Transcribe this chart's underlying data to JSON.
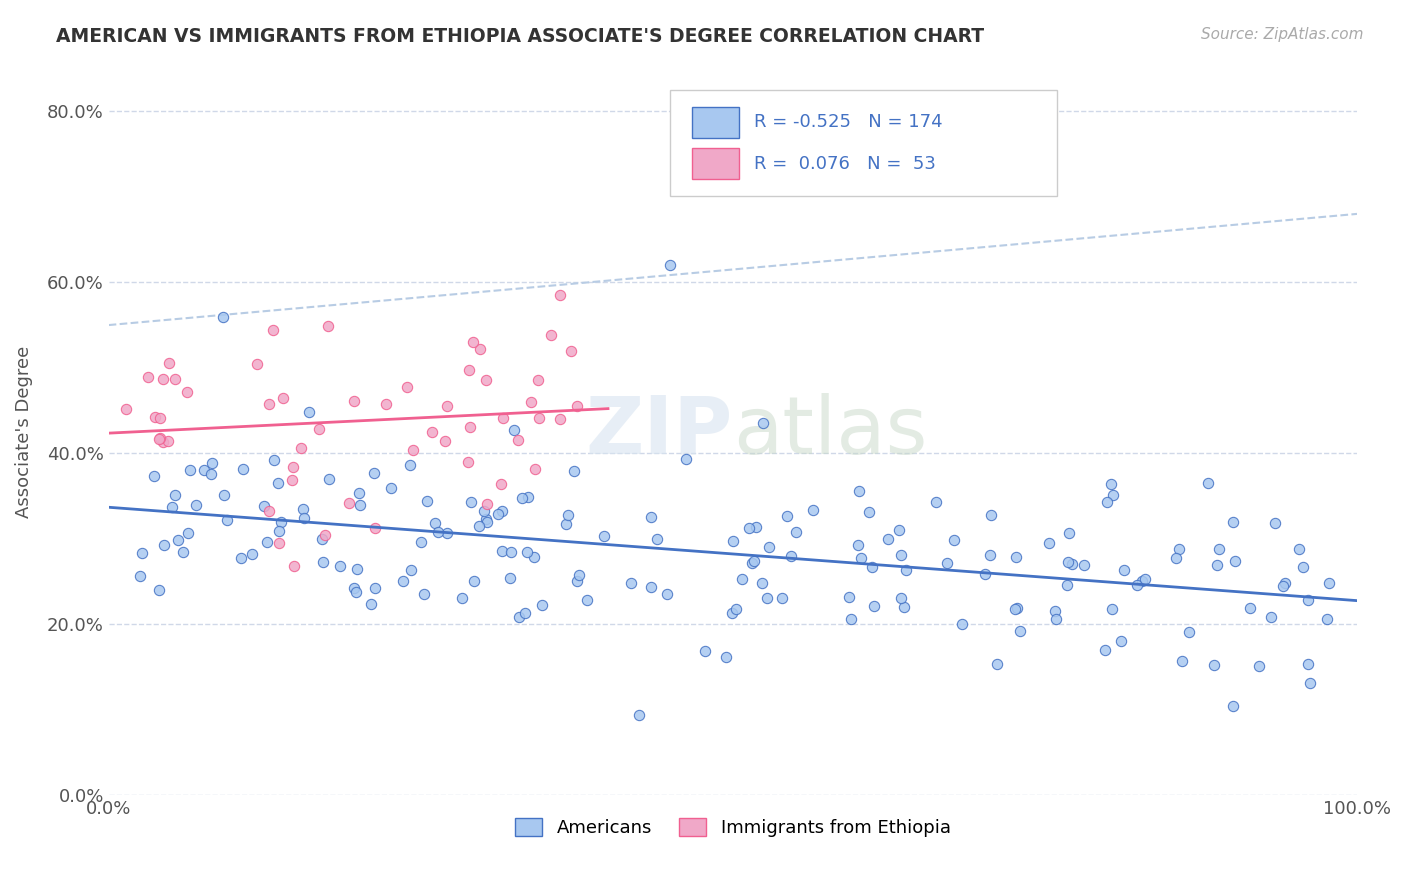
{
  "title": "AMERICAN VS IMMIGRANTS FROM ETHIOPIA ASSOCIATE'S DEGREE CORRELATION CHART",
  "source": "Source: ZipAtlas.com",
  "ylabel": "Associate's Degree",
  "xlim": [
    0.0,
    1.0
  ],
  "ylim": [
    0.0,
    0.85
  ],
  "ytick_values": [
    0.0,
    0.2,
    0.4,
    0.6,
    0.8
  ],
  "color_american": "#a8c8f0",
  "color_ethiopia": "#f0a8c8",
  "color_american_line": "#4472c4",
  "color_ethiopia_line": "#f06090",
  "color_trendline_dashed": "#b8cce4",
  "watermark_zip": "ZIP",
  "watermark_atlas": "atlas",
  "background_color": "#ffffff",
  "grid_color": "#d0d8e8"
}
